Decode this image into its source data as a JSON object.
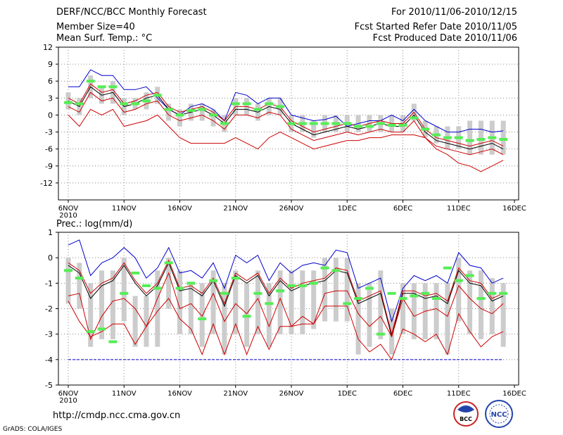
{
  "header": {
    "title": "DERF/NCC/BCC Monthly Forecast",
    "member_size": "Member Size=40",
    "variable": "Mean Surf. Temp.: °C",
    "period": "For 2010/11/06-2010/12/15",
    "started": "Fcst Started Refer Date 2010/11/05",
    "produced": "Fcst Produced Date 2010/11/06"
  },
  "footer": {
    "url": "http://cmdp.ncc.cma.gov.cn",
    "grads": "GrADS: COLA/IGES",
    "logo_bcc": "BCC",
    "logo_ncc": "NCC"
  },
  "colors": {
    "max_line": "#0000cc",
    "min_line": "#cc0000",
    "mean_line": "#000000",
    "mean_marker": "#55ee55",
    "box": "#cccccc",
    "threshold": "#0000cc",
    "grid": "#888888"
  },
  "chart_data": [
    {
      "type": "line",
      "title": "Mean Surf. Temp.: °C",
      "xlabel": "",
      "ylabel": "°C",
      "ylim": [
        -15,
        12
      ],
      "yticks": [
        -12,
        -9,
        -6,
        -3,
        0,
        3,
        6,
        9,
        12
      ],
      "xticks": [
        {
          "day": 1,
          "label": "6NOV",
          "sub": "2010"
        },
        {
          "day": 6,
          "label": "11NOV"
        },
        {
          "day": 11,
          "label": "16NOV"
        },
        {
          "day": 16,
          "label": "21NOV"
        },
        {
          "day": 21,
          "label": "26NOV"
        },
        {
          "day": 26,
          "label": "1DEC"
        },
        {
          "day": 31,
          "label": "6DEC"
        },
        {
          "day": 36,
          "label": "11DEC"
        },
        {
          "day": 41,
          "label": "16DEC"
        }
      ],
      "x": [
        1,
        2,
        3,
        4,
        5,
        6,
        7,
        8,
        9,
        10,
        11,
        12,
        13,
        14,
        15,
        16,
        17,
        18,
        19,
        20,
        21,
        22,
        23,
        24,
        25,
        26,
        27,
        28,
        29,
        30,
        31,
        32,
        33,
        34,
        35,
        36,
        37,
        38,
        39,
        40
      ],
      "series": [
        {
          "name": "max",
          "values": [
            5,
            5,
            8,
            7,
            7,
            4.5,
            4.5,
            5,
            3,
            1,
            0,
            1.5,
            2,
            1,
            -1,
            4,
            3.5,
            2,
            3,
            3,
            0,
            -0.5,
            -1,
            -0.8,
            -0.2,
            -2,
            -1.5,
            -1,
            -1,
            0,
            -1,
            1,
            -1,
            -2,
            -3,
            -3,
            -2.5,
            -2.5,
            -3,
            -2.8
          ]
        },
        {
          "name": "mean",
          "values": [
            2.5,
            1.5,
            5,
            3.5,
            4,
            1.5,
            2,
            3,
            3.5,
            1,
            0,
            0.5,
            1,
            0,
            -1.5,
            1,
            1,
            0.5,
            1.5,
            1,
            -1.5,
            -2.5,
            -3.5,
            -3,
            -2.5,
            -2,
            -2.5,
            -2,
            -1.5,
            -2,
            -2,
            0,
            -3,
            -4.5,
            -5,
            -5.5,
            -6,
            -5.5,
            -5,
            -6
          ]
        },
        {
          "name": "upper",
          "values": [
            3,
            2,
            5.5,
            4,
            4.5,
            2,
            2.5,
            3.5,
            4,
            1.5,
            0.5,
            1,
            1.5,
            0.5,
            -1,
            1.5,
            1.5,
            1,
            2,
            1.5,
            -1,
            -2,
            -3,
            -2.5,
            -2,
            -1.5,
            -2,
            -1.5,
            -1,
            -1.5,
            -1.5,
            0.5,
            -2.5,
            -4,
            -4.5,
            -5,
            -5.5,
            -5,
            -4.5,
            -5.5
          ]
        },
        {
          "name": "lower",
          "values": [
            1.5,
            0.5,
            4,
            2.5,
            3,
            0.5,
            1,
            2,
            2.5,
            0,
            -1,
            -0.5,
            0,
            -1,
            -2.5,
            0,
            0,
            -0.5,
            0.5,
            0,
            -2.5,
            -3.5,
            -4.5,
            -4,
            -3.5,
            -3,
            -3.5,
            -3,
            -2.5,
            -3,
            -3,
            -1,
            -4,
            -5.5,
            -6,
            -6.5,
            -7,
            -6.5,
            -6,
            -7
          ]
        },
        {
          "name": "min",
          "values": [
            0,
            -2,
            1,
            0,
            1,
            -2,
            -1.5,
            -1,
            0,
            -2,
            -4,
            -5,
            -5,
            -5,
            -5,
            -4,
            -5,
            -6,
            -4,
            -3,
            -4,
            -5,
            -6,
            -5.5,
            -5,
            -4.5,
            -4.5,
            -4,
            -4,
            -3.5,
            -3.5,
            -3.5,
            -4,
            -6,
            -7,
            -8.5,
            -9,
            -10,
            -9,
            -8
          ]
        }
      ],
      "mean_markers": [
        2.2,
        2,
        6,
        5,
        5,
        2,
        2,
        2.5,
        3.5,
        1,
        0,
        0.8,
        1,
        0,
        -1.5,
        2,
        2,
        1,
        2,
        1.5,
        -1.5,
        -1.5,
        -1.5,
        -1.5,
        -1.5,
        -1.5,
        -2,
        -2,
        -1.5,
        -1.8,
        -1.8,
        -0.5,
        -2.5,
        -3.5,
        -4,
        -4,
        -4.5,
        -4.3,
        -4,
        -4.3
      ],
      "boxes": [
        [
          1,
          4
        ],
        [
          0,
          3
        ],
        [
          3,
          7
        ],
        [
          2,
          5
        ],
        [
          2,
          6
        ],
        [
          0,
          3
        ],
        [
          1,
          3
        ],
        [
          1,
          4
        ],
        [
          2,
          5
        ],
        [
          -1,
          2
        ],
        [
          -2,
          1
        ],
        [
          -1,
          2
        ],
        [
          -1,
          2
        ],
        [
          -2,
          1
        ],
        [
          -3,
          0
        ],
        [
          0,
          3
        ],
        [
          0,
          3
        ],
        [
          -1,
          2
        ],
        [
          0,
          3
        ],
        [
          0,
          3
        ],
        [
          -3,
          0
        ],
        [
          -3,
          0
        ],
        [
          -4,
          -1
        ],
        [
          -3,
          0
        ],
        [
          -3,
          0
        ],
        [
          -3,
          0
        ],
        [
          -3,
          0
        ],
        [
          -3,
          0
        ],
        [
          -3,
          0
        ],
        [
          -3,
          0
        ],
        [
          -3,
          0
        ],
        [
          -1,
          2
        ],
        [
          -4,
          -1
        ],
        [
          -5,
          -2
        ],
        [
          -6,
          -2
        ],
        [
          -6,
          -2
        ],
        [
          -7,
          -1
        ],
        [
          -7,
          -1
        ],
        [
          -7,
          -1
        ],
        [
          -7,
          -1
        ]
      ]
    },
    {
      "type": "line",
      "title": "Prec.: log(mm/d)",
      "xlabel": "",
      "ylabel": "log(mm/d)",
      "ylim": [
        -5,
        1
      ],
      "yticks": [
        -5,
        -4,
        -3,
        -2,
        -1,
        0,
        1
      ],
      "threshold": -4,
      "xticks": [
        {
          "day": 1,
          "label": "6NOV",
          "sub": "2010"
        },
        {
          "day": 6,
          "label": "11NOV"
        },
        {
          "day": 11,
          "label": "16NOV"
        },
        {
          "day": 16,
          "label": "21NOV"
        },
        {
          "day": 21,
          "label": "26NOV"
        },
        {
          "day": 26,
          "label": "1DEC"
        },
        {
          "day": 31,
          "label": "6DEC"
        },
        {
          "day": 36,
          "label": "11DEC"
        },
        {
          "day": 41,
          "label": "16DEC"
        }
      ],
      "x": [
        1,
        2,
        3,
        4,
        5,
        6,
        7,
        8,
        9,
        10,
        11,
        12,
        13,
        14,
        15,
        16,
        17,
        18,
        19,
        20,
        21,
        22,
        23,
        24,
        25,
        26,
        27,
        28,
        29,
        30,
        31,
        32,
        33,
        34,
        35,
        36,
        37,
        38,
        39,
        40
      ],
      "series": [
        {
          "name": "max",
          "values": [
            0.5,
            0.7,
            -0.7,
            -0.2,
            0,
            0.4,
            0,
            -0.8,
            -0.4,
            0.4,
            -0.6,
            -0.5,
            -0.8,
            -0.2,
            -1.2,
            0.1,
            -0.2,
            0.1,
            -0.9,
            -0.2,
            -0.6,
            -0.3,
            -0.2,
            -0.3,
            0.3,
            0.2,
            -1.2,
            -1,
            -0.8,
            -2.5,
            -1.2,
            -0.7,
            -0.9,
            -0.7,
            -1,
            0.2,
            -0.3,
            -0.4,
            -1,
            -0.8
          ]
        },
        {
          "name": "mean",
          "values": [
            -0.3,
            -0.6,
            -1.6,
            -1.1,
            -0.9,
            -0.3,
            -1,
            -1.5,
            -1.1,
            -0.2,
            -1.3,
            -1.2,
            -1.5,
            -0.9,
            -1.9,
            -0.7,
            -1,
            -0.7,
            -1.5,
            -0.9,
            -1.3,
            -1.1,
            -1,
            -0.9,
            -0.5,
            -0.6,
            -1.8,
            -1.6,
            -1.4,
            -3.1,
            -1.4,
            -1.4,
            -1.6,
            -1.5,
            -1.8,
            -0.5,
            -1,
            -1.1,
            -1.7,
            -1.5
          ]
        },
        {
          "name": "upper",
          "values": [
            -0.2,
            -0.5,
            -1.4,
            -1,
            -0.8,
            -0.2,
            -0.9,
            -1.4,
            -1,
            -0.1,
            -1.2,
            -1.1,
            -1.4,
            -0.8,
            -1.8,
            -0.6,
            -0.9,
            -0.6,
            -1.4,
            -0.8,
            -1.2,
            -1,
            -0.9,
            -0.8,
            -0.4,
            -0.5,
            -1.7,
            -1.5,
            -1.3,
            -3,
            -1.3,
            -1.3,
            -1.5,
            -1.4,
            -1.7,
            -0.4,
            -0.9,
            -1,
            -1.6,
            -1.4
          ]
        },
        {
          "name": "lower",
          "values": [
            -1.5,
            -1.4,
            -3.2,
            -2.3,
            -1.7,
            -1.6,
            -2,
            -2.7,
            -1.6,
            -0.6,
            -2,
            -1.8,
            -2.3,
            -1.4,
            -2.5,
            -1.8,
            -2.2,
            -1.6,
            -2.7,
            -1.6,
            -2.7,
            -2.3,
            -2.6,
            -1.4,
            -1.3,
            -1.3,
            -2.2,
            -2.7,
            -2.3,
            -3.1,
            -1.6,
            -2.3,
            -2.1,
            -2,
            -2.3,
            -1.1,
            -1.6,
            -2,
            -2.2,
            -1.8
          ]
        },
        {
          "name": "min",
          "values": [
            -1.7,
            -2.5,
            -3.1,
            -2.9,
            -2.6,
            -2.6,
            -3.4,
            -2.7,
            -2.1,
            -1.6,
            -2.4,
            -2.8,
            -3.8,
            -2.6,
            -3.8,
            -2.6,
            -3.8,
            -2.7,
            -3.6,
            -2.7,
            -2.7,
            -2.6,
            -2.6,
            -1.9,
            -1.9,
            -1.9,
            -3.2,
            -3.7,
            -3.4,
            -4,
            -2.8,
            -3,
            -3.3,
            -3,
            -3.8,
            -2.2,
            -2.9,
            -3.5,
            -3.1,
            -2.9
          ]
        }
      ],
      "mean_markers": [
        -0.5,
        -0.8,
        -2.9,
        -2.8,
        -3.3,
        -1.4,
        -0.6,
        -1.1,
        -1.2,
        -0.2,
        -1.2,
        -1,
        -2.4,
        -0.9,
        -1.4,
        -0.8,
        -2.3,
        -1.4,
        -1.8,
        -1.3,
        -1.1,
        -1.1,
        -1,
        -0.4,
        -0.5,
        -1.8,
        -1.6,
        -1.2,
        -3,
        -1.4,
        -1.6,
        -1.5,
        -1.4,
        -1.6,
        -0.4,
        -0.9,
        -0.7,
        -1.6,
        -1.4,
        -1.4
      ],
      "boxes": [
        [
          -1.8,
          0
        ],
        [
          -2,
          -0.2
        ],
        [
          -3.5,
          -1
        ],
        [
          -3.2,
          -0.5
        ],
        [
          -3.2,
          -0.5
        ],
        [
          -2.5,
          0
        ],
        [
          -3.5,
          -1.5
        ],
        [
          -3.5,
          -1.5
        ],
        [
          -3.5,
          -0.5
        ],
        [
          -2,
          0
        ],
        [
          -3,
          -0.5
        ],
        [
          -3,
          -1
        ],
        [
          -3.5,
          -1
        ],
        [
          -3,
          -0.5
        ],
        [
          -3.8,
          -1
        ],
        [
          -3,
          -0.5
        ],
        [
          -3.5,
          -1
        ],
        [
          -3,
          -0.5
        ],
        [
          -3.5,
          -1
        ],
        [
          -3,
          -0.5
        ],
        [
          -3,
          -0.5
        ],
        [
          -3,
          -0.5
        ],
        [
          -2.8,
          -0.5
        ],
        [
          -2.5,
          0
        ],
        [
          -2.5,
          0
        ],
        [
          -2.5,
          0
        ],
        [
          -3.8,
          -1
        ],
        [
          -3.5,
          -1
        ],
        [
          -3.2,
          -0.5
        ],
        [
          -3.8,
          -2
        ],
        [
          -3,
          -1
        ],
        [
          -3.2,
          -1
        ],
        [
          -3.2,
          -1
        ],
        [
          -3.2,
          -1
        ],
        [
          -3.8,
          -1
        ],
        [
          -2.5,
          0
        ],
        [
          -3,
          -0.5
        ],
        [
          -3.2,
          -0.5
        ],
        [
          -3,
          -0.8
        ],
        [
          -3.5,
          -1
        ]
      ]
    }
  ]
}
